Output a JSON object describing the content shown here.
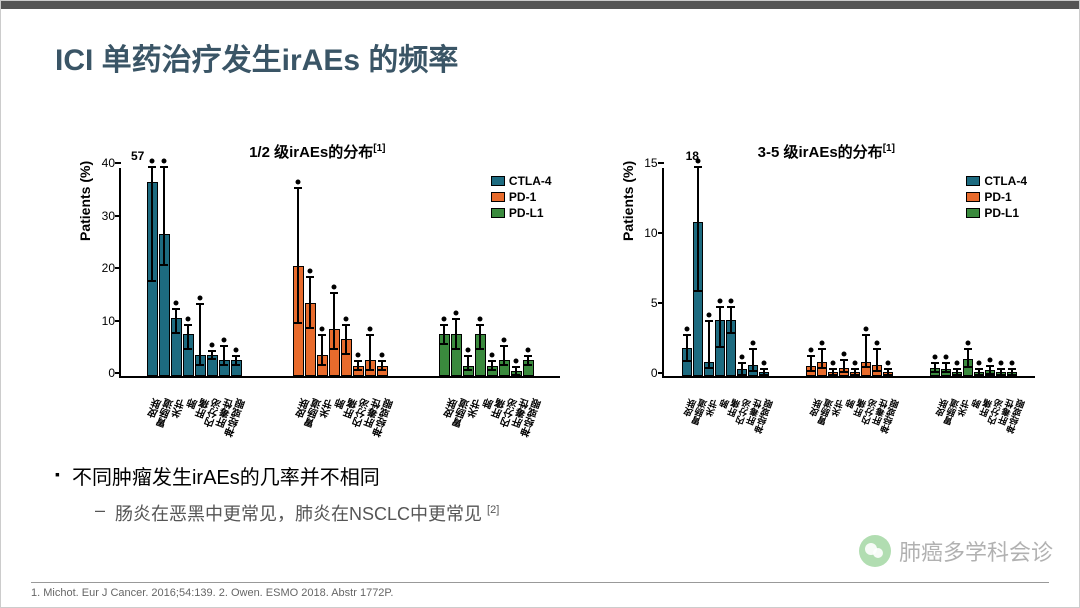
{
  "page": {
    "title": "ICI 单药治疗发生irAEs 的频率",
    "title_color": "#3a5566",
    "background": "#ffffff"
  },
  "charts": {
    "ylabel": "Patients (%)",
    "categories": [
      "皮肤",
      "胃肠道",
      "关节",
      "肺",
      "肝痛",
      "内分泌",
      "肝毒性",
      "神经或眼"
    ],
    "series": [
      {
        "name": "CTLA-4",
        "color": "#1d6b80"
      },
      {
        "name": "PD-1",
        "color": "#e86b2c"
      },
      {
        "name": "PD-L1",
        "color": "#3a8a3d"
      }
    ],
    "left": {
      "title_prefix": "1/2 级irAEs的分布",
      "title_sup": "[1]",
      "ylim": [
        0,
        40
      ],
      "ytick_step": 10,
      "annotation": {
        "text": "57",
        "x_group": 0,
        "x_bar": 0,
        "y": 40
      },
      "groups": [
        {
          "series": 0,
          "bars": [
            {
              "val": 37,
              "lo": 18,
              "hi": 57
            },
            {
              "val": 27,
              "lo": 21,
              "hi": 40
            },
            {
              "val": 11,
              "lo": 8,
              "hi": 13
            },
            {
              "val": 8,
              "lo": 5,
              "hi": 10
            },
            {
              "val": 4,
              "lo": 2,
              "hi": 14
            },
            {
              "val": 4,
              "lo": 3,
              "hi": 5
            },
            {
              "val": 3,
              "lo": 2,
              "hi": 6
            },
            {
              "val": 3,
              "lo": 2,
              "hi": 4
            }
          ]
        },
        {
          "series": 1,
          "bars": [
            {
              "val": 21,
              "lo": 10,
              "hi": 36
            },
            {
              "val": 14,
              "lo": 9,
              "hi": 19
            },
            {
              "val": 4,
              "lo": 2,
              "hi": 8
            },
            {
              "val": 9,
              "lo": 5,
              "hi": 16
            },
            {
              "val": 7,
              "lo": 4,
              "hi": 10
            },
            {
              "val": 2,
              "lo": 1,
              "hi": 3
            },
            {
              "val": 3,
              "lo": 1,
              "hi": 8
            },
            {
              "val": 2,
              "lo": 1,
              "hi": 3
            }
          ]
        },
        {
          "series": 2,
          "bars": [
            {
              "val": 8,
              "lo": 6,
              "hi": 10
            },
            {
              "val": 8,
              "lo": 5,
              "hi": 11
            },
            {
              "val": 2,
              "lo": 1,
              "hi": 4
            },
            {
              "val": 8,
              "lo": 5,
              "hi": 10
            },
            {
              "val": 2,
              "lo": 1,
              "hi": 3
            },
            {
              "val": 3,
              "lo": 2,
              "hi": 6
            },
            {
              "val": 1,
              "lo": 0,
              "hi": 2
            },
            {
              "val": 3,
              "lo": 2,
              "hi": 4
            }
          ]
        }
      ]
    },
    "right": {
      "title_prefix": "3-5 级irAEs的分布",
      "title_sup": "[1]",
      "ylim": [
        0,
        15
      ],
      "ytick_step": 5,
      "annotation": {
        "text": "18",
        "x_group": 0,
        "x_bar": 1,
        "y": 15
      },
      "groups": [
        {
          "series": 0,
          "bars": [
            {
              "val": 2,
              "lo": 1,
              "hi": 3
            },
            {
              "val": 11,
              "lo": 6,
              "hi": 18
            },
            {
              "val": 1,
              "lo": 0.5,
              "hi": 4
            },
            {
              "val": 4,
              "lo": 2,
              "hi": 5
            },
            {
              "val": 4,
              "lo": 3,
              "hi": 5
            },
            {
              "val": 0.5,
              "lo": 0,
              "hi": 1
            },
            {
              "val": 0.8,
              "lo": 0.3,
              "hi": 2
            },
            {
              "val": 0.3,
              "lo": 0,
              "hi": 0.6
            }
          ]
        },
        {
          "series": 1,
          "bars": [
            {
              "val": 0.7,
              "lo": 0.3,
              "hi": 1.5
            },
            {
              "val": 1,
              "lo": 0.5,
              "hi": 2
            },
            {
              "val": 0.3,
              "lo": 0,
              "hi": 0.6
            },
            {
              "val": 0.6,
              "lo": 0.2,
              "hi": 1.2
            },
            {
              "val": 0.3,
              "lo": 0,
              "hi": 0.6
            },
            {
              "val": 1,
              "lo": 0.6,
              "hi": 3
            },
            {
              "val": 0.8,
              "lo": 0.3,
              "hi": 2
            },
            {
              "val": 0.3,
              "lo": 0,
              "hi": 0.6
            }
          ]
        },
        {
          "series": 2,
          "bars": [
            {
              "val": 0.6,
              "lo": 0.2,
              "hi": 1
            },
            {
              "val": 0.5,
              "lo": 0.2,
              "hi": 1
            },
            {
              "val": 0.3,
              "lo": 0,
              "hi": 0.6
            },
            {
              "val": 1.2,
              "lo": 0.6,
              "hi": 2
            },
            {
              "val": 0.3,
              "lo": 0,
              "hi": 0.6
            },
            {
              "val": 0.4,
              "lo": 0.1,
              "hi": 0.8
            },
            {
              "val": 0.3,
              "lo": 0,
              "hi": 0.6
            },
            {
              "val": 0.3,
              "lo": 0,
              "hi": 0.6
            }
          ]
        }
      ]
    }
  },
  "bullets": {
    "main": "不同肿瘤发生irAEs的几率并不相同",
    "sub_text": "肠炎在恶黑中更常见，肺炎在NSCLC中更常见 ",
    "sub_sup": "[2]"
  },
  "footer": "1. Michot. Eur J Cancer. 2016;54:139. 2. Owen. ESMO 2018. Abstr 1772P.",
  "watermark": "肺癌多学科会诊"
}
